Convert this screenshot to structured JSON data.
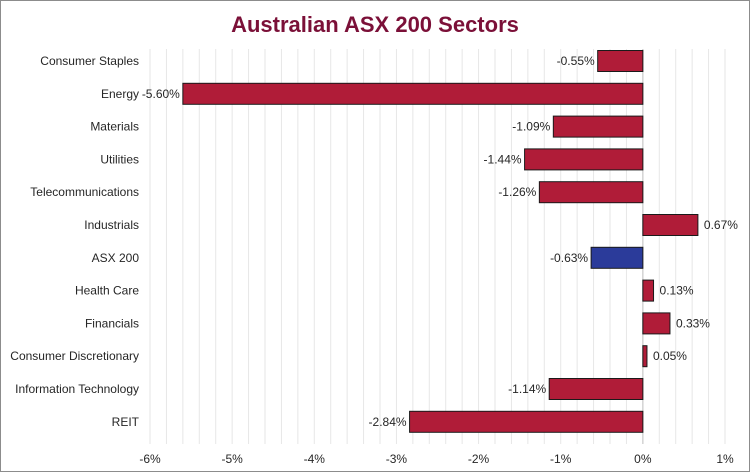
{
  "chart_data": {
    "type": "bar",
    "orientation": "horizontal",
    "title": "Australian ASX 200 Sectors",
    "categories": [
      "Consumer Staples",
      "Energy",
      "Materials",
      "Utilities",
      "Telecommunications",
      "Industrials",
      "ASX 200",
      "Health Care",
      "Financials",
      "Consumer Discretionary",
      "Information Technology",
      "REIT"
    ],
    "values": [
      -0.55,
      -5.6,
      -1.09,
      -1.44,
      -1.26,
      0.67,
      -0.63,
      0.13,
      0.33,
      0.05,
      -1.14,
      -2.84
    ],
    "value_labels": [
      "-0.55%",
      "-5.60%",
      "-1.09%",
      "-1.44%",
      "-1.26%",
      "0.67%",
      "-0.63%",
      "0.13%",
      "0.33%",
      "0.05%",
      "-1.14%",
      "-2.84%"
    ],
    "highlight_category": "ASX 200",
    "xlim": [
      -6,
      1
    ],
    "x_ticks": [
      -6,
      -5,
      -4,
      -3,
      -2,
      -1,
      0,
      1
    ],
    "x_tick_labels": [
      "-6%",
      "-5%",
      "-4%",
      "-3%",
      "-2%",
      "-1%",
      "0%",
      "1%"
    ],
    "minor_step": 0.2,
    "xlabel": "",
    "ylabel": "",
    "grid": true,
    "legend": "none"
  },
  "colors": {
    "title": "#7b1038",
    "bar": "#b01c38",
    "highlight_bar": "#2b3b9a",
    "bar_border": "#1a1a1a",
    "grid": "#e6e6e6",
    "frame": "#8c8c8c"
  }
}
